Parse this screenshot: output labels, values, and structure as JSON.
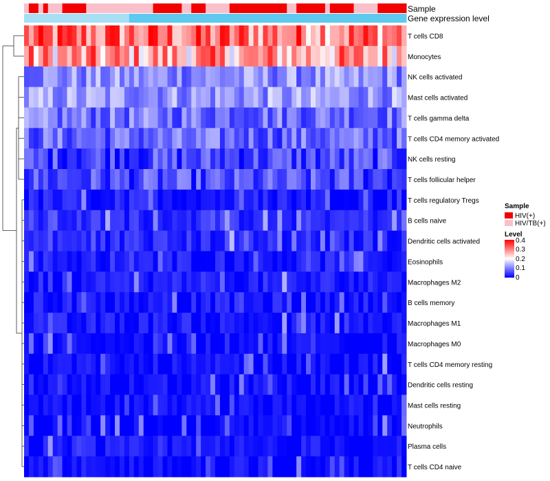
{
  "chart_data": {
    "type": "heatmap",
    "title": "",
    "annotation_tracks": [
      {
        "name": "Sample",
        "values": [
          "HIV/TB(+)",
          "HIV(+)",
          "HIV(+)",
          "HIV/TB(+)",
          "HIV(+)",
          "HIV/TB(+)",
          "HIV/TB(+)",
          "HIV/TB(+)",
          "HIV(+)",
          "HIV(+)",
          "HIV(+)",
          "HIV(+)",
          "HIV(+)",
          "HIV/TB(+)",
          "HIV/TB(+)",
          "HIV/TB(+)",
          "HIV/TB(+)",
          "HIV/TB(+)",
          "HIV/TB(+)",
          "HIV/TB(+)",
          "HIV/TB(+)",
          "HIV/TB(+)",
          "HIV/TB(+)",
          "HIV/TB(+)",
          "HIV/TB(+)",
          "HIV/TB(+)",
          "HIV/TB(+)",
          "HIV(+)",
          "HIV(+)",
          "HIV(+)",
          "HIV(+)",
          "HIV(+)",
          "HIV(+)",
          "HIV/TB(+)",
          "HIV/TB(+)",
          "HIV(+)",
          "HIV(+)",
          "HIV(+)",
          "HIV/TB(+)",
          "HIV/TB(+)",
          "HIV/TB(+)",
          "HIV/TB(+)",
          "HIV/TB(+)",
          "HIV(+)",
          "HIV(+)",
          "HIV(+)",
          "HIV(+)",
          "HIV(+)",
          "HIV(+)",
          "HIV(+)",
          "HIV(+)",
          "HIV(+)",
          "HIV(+)",
          "HIV(+)",
          "HIV(+)",
          "HIV/TB(+)",
          "HIV/TB(+)",
          "HIV(+)",
          "HIV(+)",
          "HIV(+)",
          "HIV(+)",
          "HIV(+)",
          "HIV(+)",
          "HIV/TB(+)",
          "HIV(+)",
          "HIV(+)",
          "HIV(+)",
          "HIV(+)",
          "HIV(+)",
          "HIV/TB(+)",
          "HIV/TB(+)",
          "HIV/TB(+)",
          "HIV/TB(+)",
          "HIV/TB(+)",
          "HIV(+)",
          "HIV(+)",
          "HIV(+)",
          "HIV(+)",
          "HIV(+)",
          "HIV(+)"
        ],
        "colors": {
          "HIV(+)": "#f20000",
          "HIV/TB(+)": "#f9c0cb"
        }
      },
      {
        "name": "Gene expression level",
        "color": "#5fc9ee",
        "colorLight": "#a8dff4",
        "light_until": 22
      }
    ],
    "rows": [
      "T cells CD8",
      "Monocytes",
      "NK cells activated",
      "Mast cells activated",
      "T cells gamma delta",
      "T cells CD4 memory activated",
      "NK cells resting",
      "T cells follicular helper",
      "T cells regulatory  Tregs",
      "B cells naive",
      "Dendritic cells activated",
      "Eosinophils",
      "Macrophages M2",
      "B cells memory",
      "Macrophages M1",
      "Macrophages M0",
      "T cells CD4 memory resting",
      "Dendritic cells resting",
      "Mast cells resting",
      "Neutrophils",
      "Plasma cells",
      "T cells CD4 naive"
    ],
    "n_samples": 80,
    "value_range": [
      0,
      0.4
    ],
    "row_base_levels": [
      0.31,
      0.27,
      0.11,
      0.12,
      0.09,
      0.08,
      0.055,
      0.055,
      0.02,
      0.035,
      0.03,
      0.02,
      0.02,
      0.015,
      0.015,
      0.01,
      0.005,
      0.005,
      0.0,
      0.0,
      0.01,
      0.005
    ],
    "legend": {
      "sample_title": "Sample",
      "sample_items": [
        "HIV(+)",
        "HIV/TB(+)"
      ],
      "level_title": "Level",
      "level_ticks": [
        "0.4",
        "0.3",
        "0.2",
        "0.1",
        "0"
      ],
      "position": "right"
    },
    "colors": {
      "low": "#0000ff",
      "mid": "#ffffff",
      "high": "#ff0000"
    }
  }
}
